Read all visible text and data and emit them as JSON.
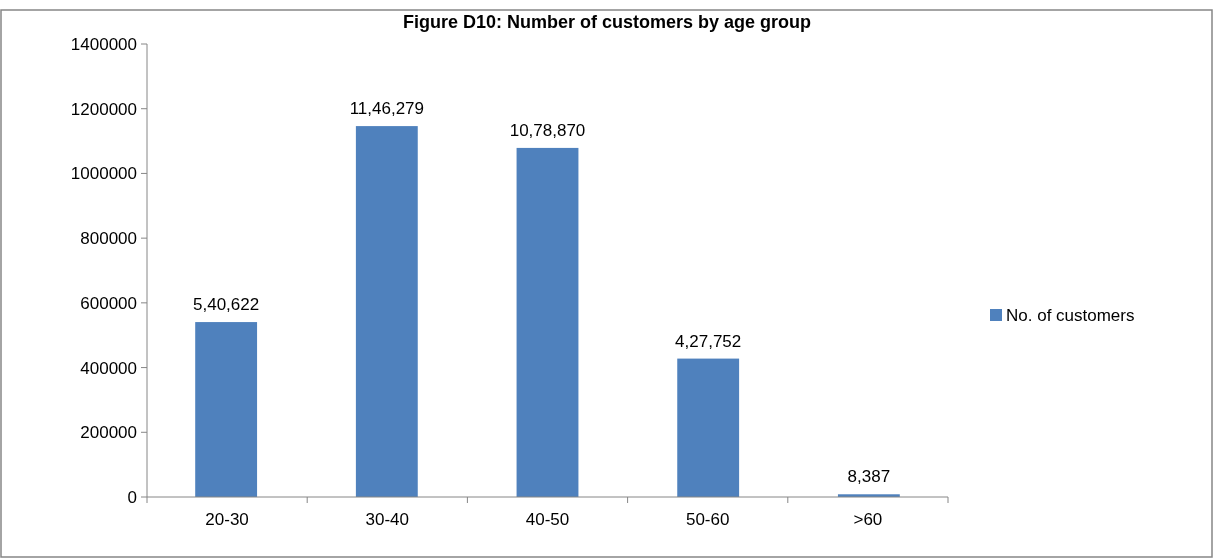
{
  "chart_data": {
    "type": "bar",
    "title": "Figure D10: Number of customers by age group",
    "categories": [
      "20-30",
      "30-40",
      "40-50",
      "50-60",
      ">60"
    ],
    "series": [
      {
        "name": "No. of customers",
        "color": "#4f81bd",
        "values": [
          540622,
          1146279,
          1078870,
          427752,
          8387
        ],
        "value_labels": [
          "5,40,622",
          "11,46,279",
          "10,78,870",
          "4,27,752",
          "8,387"
        ]
      }
    ],
    "ylim": [
      0,
      1400000
    ],
    "yticks": [
      0,
      200000,
      400000,
      600000,
      800000,
      1000000,
      1200000,
      1400000
    ],
    "grid": false,
    "legend": "right"
  }
}
